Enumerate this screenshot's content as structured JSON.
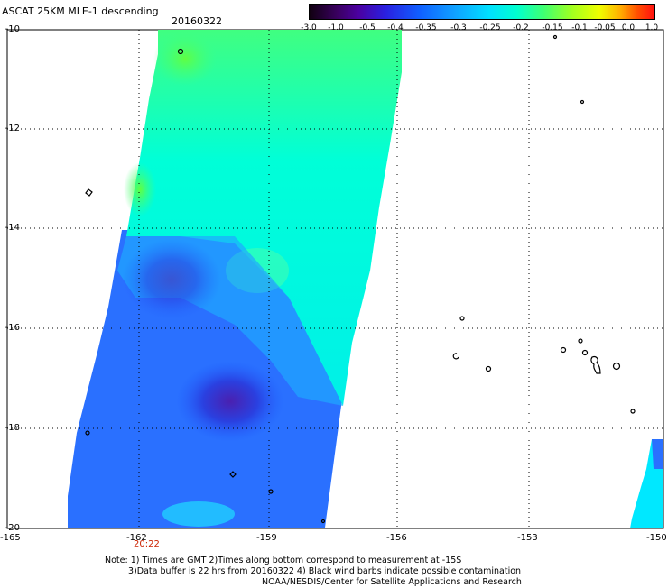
{
  "header": {
    "title": "ASCAT 25KM MLE-1 descending",
    "date": "20160322"
  },
  "colorbar": {
    "labels": [
      "-3.0",
      "-1.0",
      "-0.5",
      "-0.4",
      "-0.35",
      "-0.3",
      "-0.25",
      "-0.2",
      "-0.15",
      "-0.1",
      "-0.05",
      "0.0",
      "1.0"
    ],
    "colors": [
      "#200010",
      "#4a0080",
      "#2020d0",
      "#1060ff",
      "#10a0ff",
      "#00e0ff",
      "#00ffe0",
      "#40ff80",
      "#a0ff20",
      "#e0ff00",
      "#ffc000",
      "#ff6000",
      "#ff1010"
    ]
  },
  "axes": {
    "x_ticks": [
      "-165",
      "-162",
      "-159",
      "-156",
      "-153",
      "-150"
    ],
    "y_ticks": [
      "-10",
      "-12",
      "-14",
      "-16",
      "-18",
      "-20"
    ]
  },
  "time_label": "20:22",
  "note": {
    "line1": "Note: 1) Times are GMT 2)Times along bottom correspond to measurement at -15S",
    "line2": "3)Data buffer is 22 hrs from 20160322 4) Black wind barbs indicate possible contamination",
    "line3": "NOAA/NESDIS/Center for Satellite Applications and Research"
  }
}
